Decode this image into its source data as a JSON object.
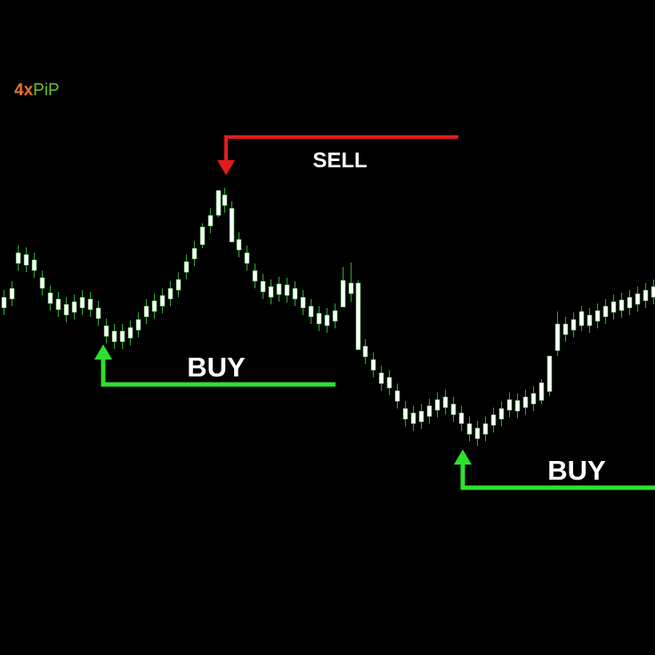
{
  "logo": {
    "prefix": "4x",
    "suffix": "PiP"
  },
  "signals": [
    {
      "label": "SELL"
    },
    {
      "label": "BUY"
    },
    {
      "label": "BUY"
    }
  ]
}
